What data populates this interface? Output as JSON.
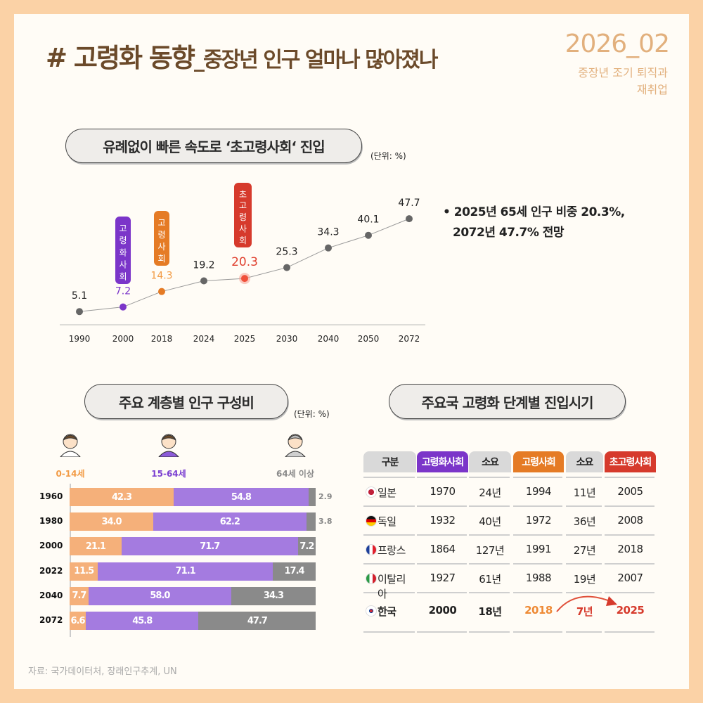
{
  "header": {
    "title_main": "# 고령화 동향",
    "title_sub": "_중장년 인구 얼마나 많아졌나",
    "issue": "2026_02",
    "issue_sub_line1": "중장년 조기 퇴직과",
    "issue_sub_line2": "재취업"
  },
  "section1": {
    "title": "유례없이 빠른 속도로 ‘초고령사회‘ 진입",
    "unit": "(단위: %)",
    "bullet_line1": "• 2025년 65세 인구 비중 20.3%,",
    "bullet_line2": "2072년 47.7% 전망",
    "stage_labels": [
      {
        "year": "2000",
        "text": "고령화사회",
        "color": "#7B35C9"
      },
      {
        "year": "2018",
        "text": "고령사회",
        "color": "#E57B25"
      },
      {
        "year": "2025",
        "text": "초고령사회",
        "color": "#D63A2C"
      }
    ]
  },
  "section2": {
    "title": "주요 계층별 인구 구성비",
    "unit": "(단위: %)",
    "age_groups": [
      {
        "label": "0-14세",
        "color": "#F29B45",
        "icon": "child-avatar-icon"
      },
      {
        "label": "15-64세",
        "color": "#7B3FD1",
        "icon": "adult-avatar-icon"
      },
      {
        "label": "64세 이상",
        "color": "#8A8A8A",
        "icon": "senior-avatar-icon"
      }
    ]
  },
  "section3": {
    "title": "주요국 고령화 단계별 진입시기",
    "headers": [
      {
        "text": "구분",
        "bg": "#D9D9D9",
        "color": "#222"
      },
      {
        "text": "고령화사회",
        "bg": "#7B35C9",
        "color": "#fff"
      },
      {
        "text": "소요",
        "bg": "#D9D9D9",
        "color": "#222"
      },
      {
        "text": "고령사회",
        "bg": "#E57B25",
        "color": "#fff"
      },
      {
        "text": "소요",
        "bg": "#D9D9D9",
        "color": "#222"
      },
      {
        "text": "초고령사회",
        "bg": "#D63A2C",
        "color": "#fff"
      }
    ],
    "rows": [
      {
        "country": "일본",
        "flag": "japan-flag-icon",
        "cells": [
          "1970",
          "24년",
          "1994",
          "11년",
          "2005"
        ]
      },
      {
        "country": "독일",
        "flag": "germany-flag-icon",
        "cells": [
          "1932",
          "40년",
          "1972",
          "36년",
          "2008"
        ]
      },
      {
        "country": "프랑스",
        "flag": "france-flag-icon",
        "cells": [
          "1864",
          "127년",
          "1991",
          "27년",
          "2018"
        ]
      },
      {
        "country": "이탈리아",
        "flag": "italy-flag-icon",
        "cells": [
          "1927",
          "61년",
          "1988",
          "19년",
          "2007"
        ]
      },
      {
        "country": "한국",
        "flag": "korea-flag-icon",
        "cells": [
          "2000",
          "18년",
          "2018",
          "7년",
          "2025"
        ],
        "highlight": true
      }
    ]
  },
  "footer": {
    "source": "자료: 국가데이터처, 장래인구추계, UN"
  },
  "chart_data": [
    {
      "type": "line",
      "categories": [
        "1990",
        "2000",
        "2018",
        "2024",
        "2025",
        "2030",
        "2040",
        "2050",
        "2072"
      ],
      "values": [
        5.1,
        7.2,
        14.3,
        19.2,
        20.3,
        25.3,
        34.3,
        40.1,
        47.7
      ],
      "point_colors": [
        "#666666",
        "#7B35C9",
        "#E57B25",
        "#666666",
        "#F0503A",
        "#666666",
        "#666666",
        "#666666",
        "#666666"
      ],
      "label_colors": [
        "#222222",
        "#7B35C9",
        "#F29B45",
        "#222222",
        "#E0402F",
        "#222222",
        "#222222",
        "#222222",
        "#222222"
      ],
      "unit": "(단위: %)",
      "grid": false
    },
    {
      "type": "bar",
      "orientation": "horizontal-stacked",
      "categories": [
        "1960",
        "1980",
        "2000",
        "2022",
        "2040",
        "2072"
      ],
      "series": [
        {
          "name": "0-14세",
          "color": "#F5B07A",
          "values": [
            42.3,
            34.0,
            21.1,
            11.5,
            7.7,
            6.6
          ]
        },
        {
          "name": "15-64세",
          "color": "#A47BE0",
          "values": [
            54.8,
            62.2,
            71.7,
            71.1,
            58.0,
            45.8
          ]
        },
        {
          "name": "64세 이상",
          "color": "#8A8A8A",
          "values": [
            2.9,
            3.8,
            7.2,
            17.4,
            34.3,
            47.7
          ]
        }
      ],
      "xlim": [
        0,
        100
      ]
    }
  ]
}
